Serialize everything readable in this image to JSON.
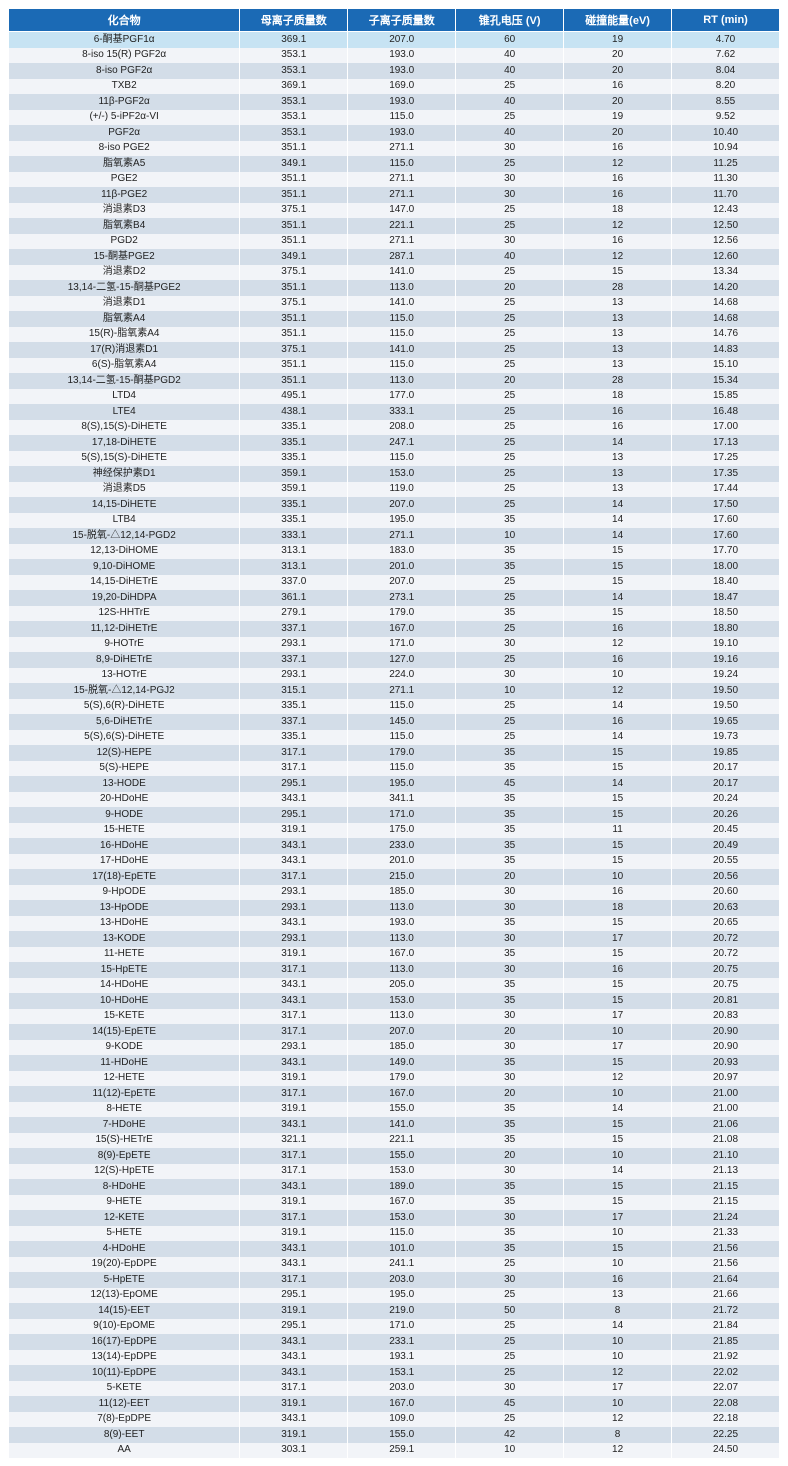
{
  "table": {
    "columns": [
      {
        "key": "compound",
        "label": "化合物",
        "class": "col-compound"
      },
      {
        "key": "parent",
        "label": "母离子质量数",
        "class": "col-num"
      },
      {
        "key": "fragment",
        "label": "子离子质量数",
        "class": "col-num"
      },
      {
        "key": "cone",
        "label": "锥孔电压 (V)",
        "class": "col-num"
      },
      {
        "key": "ce",
        "label": "碰撞能量(eV)",
        "class": "col-num"
      },
      {
        "key": "rt",
        "label": "RT (min)",
        "class": "col-num"
      }
    ],
    "highlight_row": 0,
    "row_colors": {
      "even": "#d3dde8",
      "odd": "#f2f4f8",
      "highlight": "#c7e3f3",
      "header_bg": "#1b6ab5",
      "header_fg": "#ffffff"
    },
    "rows": [
      [
        "6-酮基PGF1α",
        "369.1",
        "207.0",
        "60",
        "19",
        "4.70"
      ],
      [
        "8-iso 15(R) PGF2α",
        "353.1",
        "193.0",
        "40",
        "20",
        "7.62"
      ],
      [
        "8-iso PGF2α",
        "353.1",
        "193.0",
        "40",
        "20",
        "8.04"
      ],
      [
        "TXB2",
        "369.1",
        "169.0",
        "25",
        "16",
        "8.20"
      ],
      [
        "11β-PGF2α",
        "353.1",
        "193.0",
        "40",
        "20",
        "8.55"
      ],
      [
        "(+/-) 5-iPF2α-VI",
        "353.1",
        "115.0",
        "25",
        "19",
        "9.52"
      ],
      [
        "PGF2α",
        "353.1",
        "193.0",
        "40",
        "20",
        "10.40"
      ],
      [
        "8-iso PGE2",
        "351.1",
        "271.1",
        "30",
        "16",
        "10.94"
      ],
      [
        "脂氧素A5",
        "349.1",
        "115.0",
        "25",
        "12",
        "11.25"
      ],
      [
        "PGE2",
        "351.1",
        "271.1",
        "30",
        "16",
        "11.30"
      ],
      [
        "11β-PGE2",
        "351.1",
        "271.1",
        "30",
        "16",
        "11.70"
      ],
      [
        "消退素D3",
        "375.1",
        "147.0",
        "25",
        "18",
        "12.43"
      ],
      [
        "脂氧素B4",
        "351.1",
        "221.1",
        "25",
        "12",
        "12.50"
      ],
      [
        "PGD2",
        "351.1",
        "271.1",
        "30",
        "16",
        "12.56"
      ],
      [
        "15-酮基PGE2",
        "349.1",
        "287.1",
        "40",
        "12",
        "12.60"
      ],
      [
        "消退素D2",
        "375.1",
        "141.0",
        "25",
        "15",
        "13.34"
      ],
      [
        "13,14-二氢-15-酮基PGE2",
        "351.1",
        "113.0",
        "20",
        "28",
        "14.20"
      ],
      [
        "消退素D1",
        "375.1",
        "141.0",
        "25",
        "13",
        "14.68"
      ],
      [
        "脂氧素A4",
        "351.1",
        "115.0",
        "25",
        "13",
        "14.68"
      ],
      [
        "15(R)-脂氧素A4",
        "351.1",
        "115.0",
        "25",
        "13",
        "14.76"
      ],
      [
        "17(R)消退素D1",
        "375.1",
        "141.0",
        "25",
        "13",
        "14.83"
      ],
      [
        "6(S)-脂氧素A4",
        "351.1",
        "115.0",
        "25",
        "13",
        "15.10"
      ],
      [
        "13,14-二氢-15-酮基PGD2",
        "351.1",
        "113.0",
        "20",
        "28",
        "15.34"
      ],
      [
        "LTD4",
        "495.1",
        "177.0",
        "25",
        "18",
        "15.85"
      ],
      [
        "LTE4",
        "438.1",
        "333.1",
        "25",
        "16",
        "16.48"
      ],
      [
        "8(S),15(S)-DiHETE",
        "335.1",
        "208.0",
        "25",
        "16",
        "17.00"
      ],
      [
        "17,18-DiHETE",
        "335.1",
        "247.1",
        "25",
        "14",
        "17.13"
      ],
      [
        "5(S),15(S)-DiHETE",
        "335.1",
        "115.0",
        "25",
        "13",
        "17.25"
      ],
      [
        "神经保护素D1",
        "359.1",
        "153.0",
        "25",
        "13",
        "17.35"
      ],
      [
        "消退素D5",
        "359.1",
        "119.0",
        "25",
        "13",
        "17.44"
      ],
      [
        "14,15-DiHETE",
        "335.1",
        "207.0",
        "25",
        "14",
        "17.50"
      ],
      [
        "LTB4",
        "335.1",
        "195.0",
        "35",
        "14",
        "17.60"
      ],
      [
        "15-脱氧-△12,14-PGD2",
        "333.1",
        "271.1",
        "10",
        "14",
        "17.60"
      ],
      [
        "12,13-DiHOME",
        "313.1",
        "183.0",
        "35",
        "15",
        "17.70"
      ],
      [
        "9,10-DiHOME",
        "313.1",
        "201.0",
        "35",
        "15",
        "18.00"
      ],
      [
        "14,15-DiHETrE",
        "337.0",
        "207.0",
        "25",
        "15",
        "18.40"
      ],
      [
        "19,20-DiHDPA",
        "361.1",
        "273.1",
        "25",
        "14",
        "18.47"
      ],
      [
        "12S-HHTrE",
        "279.1",
        "179.0",
        "35",
        "15",
        "18.50"
      ],
      [
        "11,12-DiHETrE",
        "337.1",
        "167.0",
        "25",
        "16",
        "18.80"
      ],
      [
        "9-HOTrE",
        "293.1",
        "171.0",
        "30",
        "12",
        "19.10"
      ],
      [
        "8,9-DiHETrE",
        "337.1",
        "127.0",
        "25",
        "16",
        "19.16"
      ],
      [
        "13-HOTrE",
        "293.1",
        "224.0",
        "30",
        "10",
        "19.24"
      ],
      [
        "15-脱氧-△12,14-PGJ2",
        "315.1",
        "271.1",
        "10",
        "12",
        "19.50"
      ],
      [
        "5(S),6(R)-DiHETE",
        "335.1",
        "115.0",
        "25",
        "14",
        "19.50"
      ],
      [
        "5,6-DiHETrE",
        "337.1",
        "145.0",
        "25",
        "16",
        "19.65"
      ],
      [
        "5(S),6(S)-DiHETE",
        "335.1",
        "115.0",
        "25",
        "14",
        "19.73"
      ],
      [
        "12(S)-HEPE",
        "317.1",
        "179.0",
        "35",
        "15",
        "19.85"
      ],
      [
        "5(S)-HEPE",
        "317.1",
        "115.0",
        "35",
        "15",
        "20.17"
      ],
      [
        "13-HODE",
        "295.1",
        "195.0",
        "45",
        "14",
        "20.17"
      ],
      [
        "20-HDoHE",
        "343.1",
        "341.1",
        "35",
        "15",
        "20.24"
      ],
      [
        "9-HODE",
        "295.1",
        "171.0",
        "35",
        "15",
        "20.26"
      ],
      [
        "15-HETE",
        "319.1",
        "175.0",
        "35",
        "11",
        "20.45"
      ],
      [
        "16-HDoHE",
        "343.1",
        "233.0",
        "35",
        "15",
        "20.49"
      ],
      [
        "17-HDoHE",
        "343.1",
        "201.0",
        "35",
        "15",
        "20.55"
      ],
      [
        "17(18)-EpETE",
        "317.1",
        "215.0",
        "20",
        "10",
        "20.56"
      ],
      [
        "9-HpODE",
        "293.1",
        "185.0",
        "30",
        "16",
        "20.60"
      ],
      [
        "13-HpODE",
        "293.1",
        "113.0",
        "30",
        "18",
        "20.63"
      ],
      [
        "13-HDoHE",
        "343.1",
        "193.0",
        "35",
        "15",
        "20.65"
      ],
      [
        "13-KODE",
        "293.1",
        "113.0",
        "30",
        "17",
        "20.72"
      ],
      [
        "11-HETE",
        "319.1",
        "167.0",
        "35",
        "15",
        "20.72"
      ],
      [
        "15-HpETE",
        "317.1",
        "113.0",
        "30",
        "16",
        "20.75"
      ],
      [
        "14-HDoHE",
        "343.1",
        "205.0",
        "35",
        "15",
        "20.75"
      ],
      [
        "10-HDoHE",
        "343.1",
        "153.0",
        "35",
        "15",
        "20.81"
      ],
      [
        "15-KETE",
        "317.1",
        "113.0",
        "30",
        "17",
        "20.83"
      ],
      [
        "14(15)-EpETE",
        "317.1",
        "207.0",
        "20",
        "10",
        "20.90"
      ],
      [
        "9-KODE",
        "293.1",
        "185.0",
        "30",
        "17",
        "20.90"
      ],
      [
        "11-HDoHE",
        "343.1",
        "149.0",
        "35",
        "15",
        "20.93"
      ],
      [
        "12-HETE",
        "319.1",
        "179.0",
        "30",
        "12",
        "20.97"
      ],
      [
        "11(12)-EpETE",
        "317.1",
        "167.0",
        "20",
        "10",
        "21.00"
      ],
      [
        "8-HETE",
        "319.1",
        "155.0",
        "35",
        "14",
        "21.00"
      ],
      [
        "7-HDoHE",
        "343.1",
        "141.0",
        "35",
        "15",
        "21.06"
      ],
      [
        "15(S)-HETrE",
        "321.1",
        "221.1",
        "35",
        "15",
        "21.08"
      ],
      [
        "8(9)-EpETE",
        "317.1",
        "155.0",
        "20",
        "10",
        "21.10"
      ],
      [
        "12(S)-HpETE",
        "317.1",
        "153.0",
        "30",
        "14",
        "21.13"
      ],
      [
        "8-HDoHE",
        "343.1",
        "189.0",
        "35",
        "15",
        "21.15"
      ],
      [
        "9-HETE",
        "319.1",
        "167.0",
        "35",
        "15",
        "21.15"
      ],
      [
        "12-KETE",
        "317.1",
        "153.0",
        "30",
        "17",
        "21.24"
      ],
      [
        "5-HETE",
        "319.1",
        "115.0",
        "35",
        "10",
        "21.33"
      ],
      [
        "4-HDoHE",
        "343.1",
        "101.0",
        "35",
        "15",
        "21.56"
      ],
      [
        "19(20)-EpDPE",
        "343.1",
        "241.1",
        "25",
        "10",
        "21.56"
      ],
      [
        "5-HpETE",
        "317.1",
        "203.0",
        "30",
        "16",
        "21.64"
      ],
      [
        "12(13)-EpOME",
        "295.1",
        "195.0",
        "25",
        "13",
        "21.66"
      ],
      [
        "14(15)-EET",
        "319.1",
        "219.0",
        "50",
        "8",
        "21.72"
      ],
      [
        "9(10)-EpOME",
        "295.1",
        "171.0",
        "25",
        "14",
        "21.84"
      ],
      [
        "16(17)-EpDPE",
        "343.1",
        "233.1",
        "25",
        "10",
        "21.85"
      ],
      [
        "13(14)-EpDPE",
        "343.1",
        "193.1",
        "25",
        "10",
        "21.92"
      ],
      [
        "10(11)-EpDPE",
        "343.1",
        "153.1",
        "25",
        "12",
        "22.02"
      ],
      [
        "5-KETE",
        "317.1",
        "203.0",
        "30",
        "17",
        "22.07"
      ],
      [
        "11(12)-EET",
        "319.1",
        "167.0",
        "45",
        "10",
        "22.08"
      ],
      [
        "7(8)-EpDPE",
        "343.1",
        "109.0",
        "25",
        "12",
        "22.18"
      ],
      [
        "8(9)-EET",
        "319.1",
        "155.0",
        "42",
        "8",
        "22.25"
      ],
      [
        "AA",
        "303.1",
        "259.1",
        "10",
        "12",
        "24.50"
      ]
    ]
  }
}
